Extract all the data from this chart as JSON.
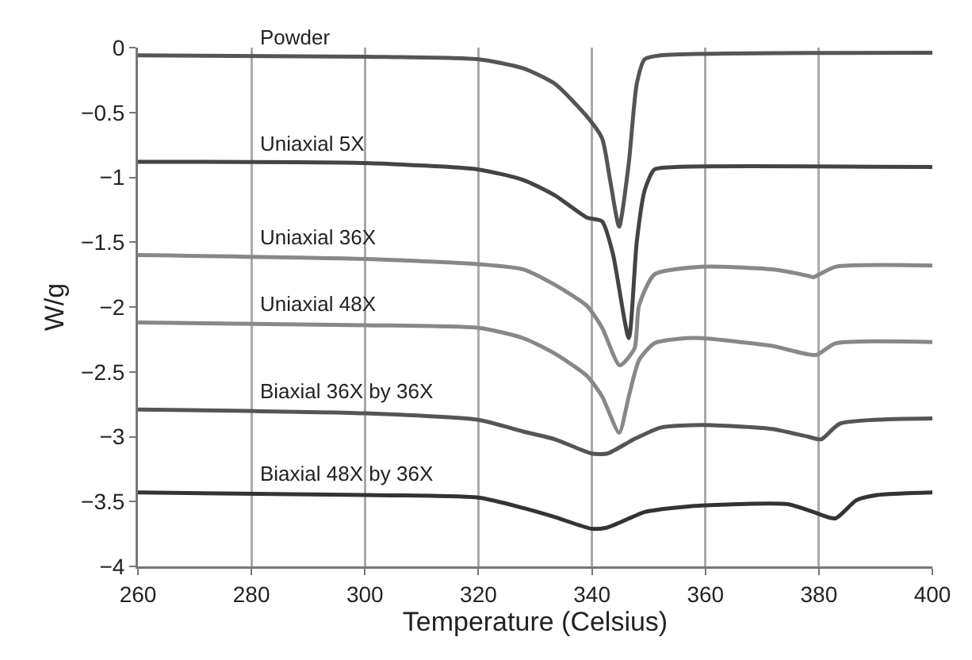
{
  "chart_data": {
    "type": "line",
    "xlabel": "Temperature (Celsius)",
    "ylabel": "W/g",
    "xlim": [
      260,
      400
    ],
    "xticks": [
      260,
      280,
      300,
      320,
      340,
      360,
      380,
      400
    ],
    "ylim": [
      -4,
      0
    ],
    "yticks": [
      0,
      {
        "value": -0.5,
        "label": "−0.5"
      },
      {
        "value": -1,
        "label": "−1"
      },
      {
        "value": -1.5,
        "label": "−1.5"
      },
      {
        "value": -2,
        "label": "−2"
      },
      {
        "value": -2.5,
        "label": "−2.5"
      },
      {
        "value": -3,
        "label": "−3"
      },
      {
        "value": -3.5,
        "label": "−3.5"
      },
      {
        "value": -4,
        "label": "−4"
      }
    ],
    "grid": "x",
    "legend": false,
    "marker": "none",
    "line_style": "solid",
    "series": [
      {
        "name": "Powder",
        "color": "#555555",
        "x": [
          260,
          300,
          320,
          327.9,
          333.5,
          339.1,
          341.8,
          343.2,
          344.8,
          346.5,
          347.9,
          349.3,
          352.1,
          400
        ],
        "values": [
          -0.06,
          -0.07,
          -0.09,
          -0.16,
          -0.28,
          -0.53,
          -0.7,
          -1.02,
          -1.38,
          -0.89,
          -0.28,
          -0.09,
          -0.06,
          -0.04
        ]
      },
      {
        "name": "Uniaxial 5X",
        "color": "#444444",
        "x": [
          260,
          300,
          320,
          327.9,
          333.5,
          339.1,
          341.8,
          343.7,
          346.5,
          347.9,
          349.3,
          351,
          354.9,
          400
        ],
        "values": [
          -0.88,
          -0.89,
          -0.94,
          -1.02,
          -1.14,
          -1.31,
          -1.34,
          -1.59,
          -2.24,
          -1.5,
          -1.1,
          -0.94,
          -0.92,
          -0.92
        ]
      },
      {
        "name": "Uniaxial 36X",
        "color": "#888888",
        "x": [
          260,
          300,
          320,
          327.9,
          333.5,
          339.1,
          341.8,
          344.9,
          347.5,
          348.3,
          351,
          359.4,
          371.7,
          378.1,
          379,
          382.9,
          400
        ],
        "values": [
          -1.6,
          -1.63,
          -1.67,
          -1.71,
          -1.83,
          -1.99,
          -2.16,
          -2.45,
          -2.32,
          -1.99,
          -1.75,
          -1.69,
          -1.71,
          -1.76,
          -1.77,
          -1.69,
          -1.68
        ]
      },
      {
        "name": "Uniaxial 48X",
        "color": "#888888",
        "x": [
          260,
          300,
          320,
          327.9,
          333.5,
          339.1,
          341.8,
          344.8,
          346.5,
          348.3,
          351,
          356.6,
          359.4,
          371.7,
          379.5,
          382.9,
          400
        ],
        "values": [
          -2.12,
          -2.14,
          -2.16,
          -2.24,
          -2.36,
          -2.53,
          -2.69,
          -2.97,
          -2.69,
          -2.41,
          -2.28,
          -2.24,
          -2.24,
          -2.3,
          -2.37,
          -2.28,
          -2.27
        ]
      },
      {
        "name": "Biaxial 36X by 36X",
        "color": "#555555",
        "x": [
          260,
          300,
          320,
          327.9,
          333.5,
          340,
          342.7,
          347.4,
          352.1,
          359.4,
          371.7,
          378.1,
          380.4,
          383.7,
          400
        ],
        "values": [
          -2.79,
          -2.82,
          -2.87,
          -2.96,
          -3.02,
          -3.13,
          -3.13,
          -3.02,
          -2.93,
          -2.91,
          -2.94,
          -3.0,
          -3.02,
          -2.9,
          -2.86
        ]
      },
      {
        "name": "Biaxial 48X by 36X",
        "color": "#333333",
        "x": [
          260,
          300,
          320,
          327.9,
          333.5,
          340,
          342.7,
          349.3,
          352.1,
          359.4,
          374.5,
          379,
          382.9,
          386.6,
          390.3,
          400
        ],
        "values": [
          -3.43,
          -3.45,
          -3.47,
          -3.55,
          -3.62,
          -3.71,
          -3.7,
          -3.58,
          -3.56,
          -3.53,
          -3.52,
          -3.58,
          -3.63,
          -3.49,
          -3.45,
          -3.43
        ]
      }
    ]
  }
}
